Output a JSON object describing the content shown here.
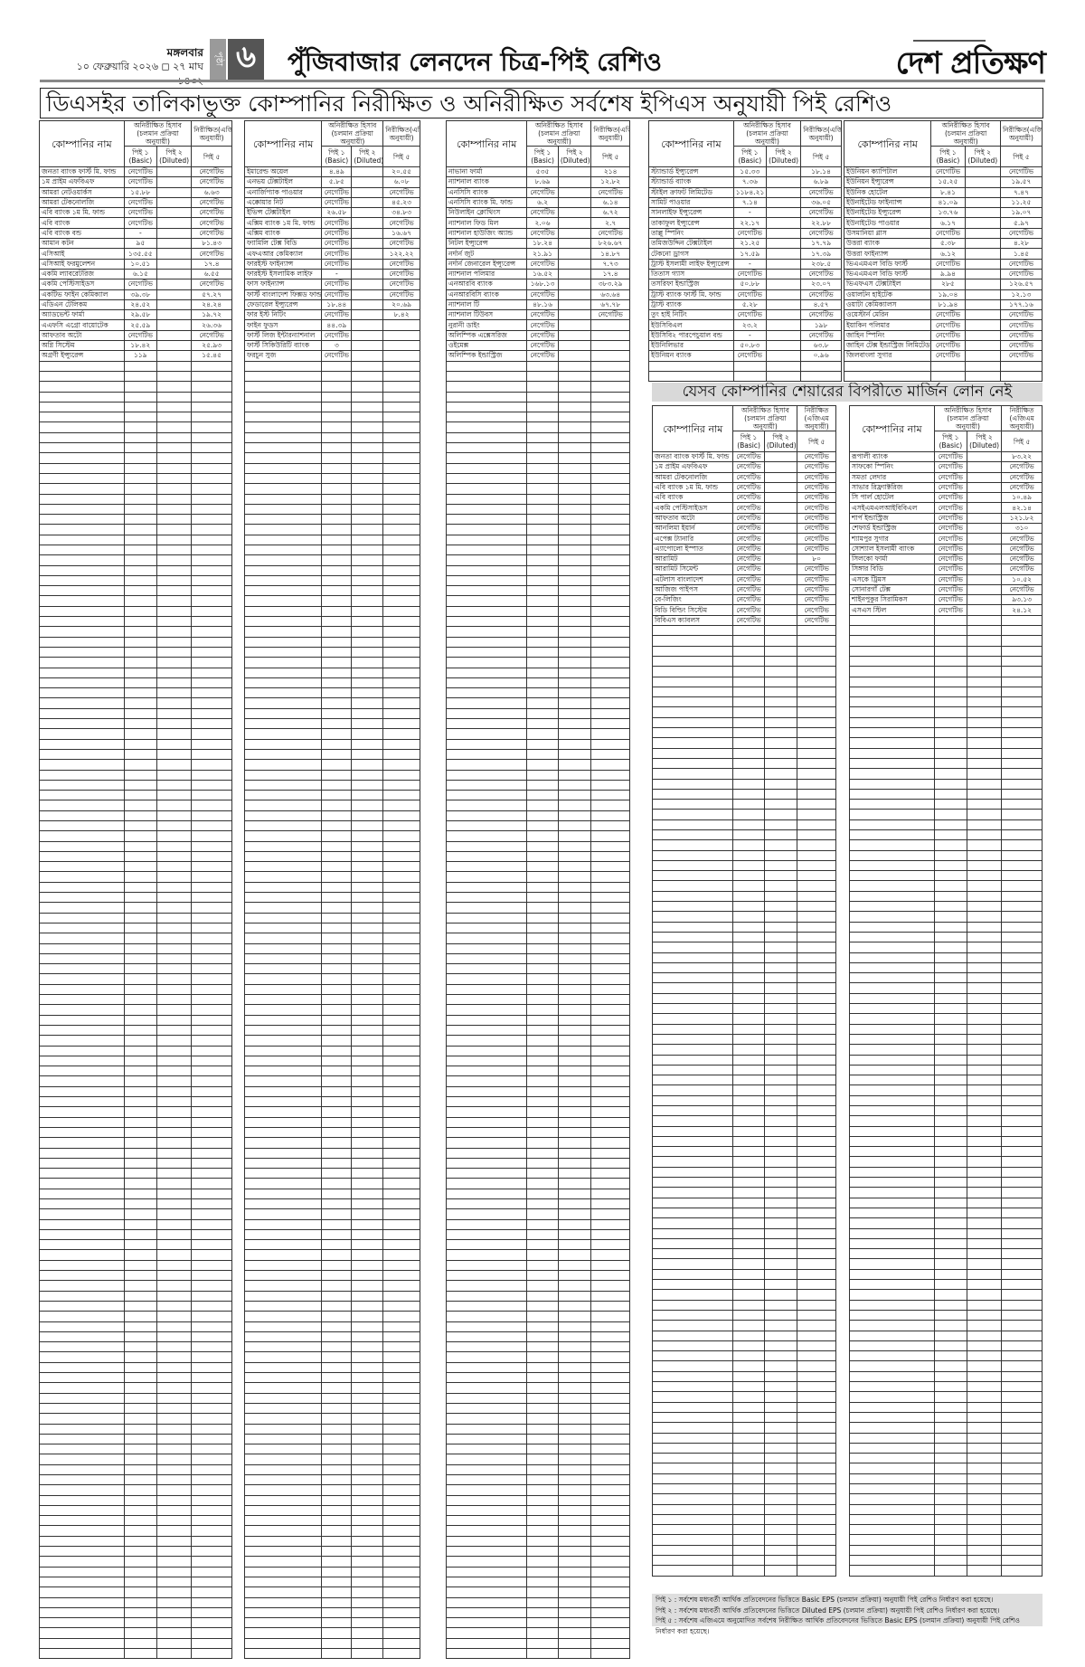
{
  "masthead": {
    "day": "মঙ্গলবার",
    "date": "১০ ফেব্রুয়ারি ২০২৬ ◻ ২৭ মাঘ ১৪৩২",
    "page_label": "পৃষ্ঠা",
    "page_number": "৬",
    "section_title": "পুঁজিবাজার লেনদেন চিত্র-পিই রেশিও",
    "logo": "দেশ প্রতিক্ষণ"
  },
  "main_title": "ডিএসইর তালিকাভুক্ত কোম্পানির নিরীক্ষিত ও অনিরীক্ষিত সর্বশেষ ইপিএস অনুযায়ী পিই রেশিও",
  "table_header": {
    "company": "কোম্পানির নাম",
    "unaudited": "অনিরীক্ষিত হিসাব (চলমান প্রক্রিয়া অনুযায়ী)",
    "audited": "নিরীক্ষিত(এজিএম অনুযায়ী)",
    "pe1": "পিই ১ (Basic)",
    "pe2": "পিই ২ (Diluted)",
    "pe5": "পিই ৫"
  },
  "pe_tables": [
    {
      "rows": [
        [
          "জনতা ব্যাংক ফার্স্ট মি. ফান্ড",
          "নেগেটিভ",
          "",
          "নেগেটিভ"
        ],
        [
          "১ম প্রাইম এফবিএফ",
          "নেগেটিভ",
          "",
          "নেগেটিভ"
        ],
        [
          "আমরা নেটওয়ার্কস",
          "১৫.৮৮",
          "",
          "৬.৬৩"
        ],
        [
          "আমরা টেকনোলজি",
          "নেগেটিভ",
          "",
          "নেগেটিভ"
        ],
        [
          "এবি ব্যাংক ১ম মি. ফান্ড",
          "নেগেটিভ",
          "",
          "নেগেটিভ"
        ],
        [
          "এবি ব্যাংক",
          "নেগেটিভ",
          "",
          "নেগেটিভ"
        ],
        [
          "এবি ব্যাংক বন্ড",
          "-",
          "",
          "নেগেটিভ"
        ],
        [
          "আমান কটন",
          "৯৫",
          "",
          "৮১.৪৩"
        ],
        [
          "এসিআই",
          "১৩৫.৫৫",
          "",
          "নেগেটিভ"
        ],
        [
          "এসিআই ফরমুলেশন",
          "১০.৫১",
          "",
          "১৭.৪"
        ],
        [
          "একমি ল্যাবরেটরিজ",
          "৬.১৫",
          "",
          "৬.৫৫"
        ],
        [
          "একমি পেস্টিসাইডস",
          "নেগেটিভ",
          "",
          "নেগেটিভ"
        ],
        [
          "একটিভ ফাইন কেমিক্যাল",
          "৩৯.৩৮",
          "",
          "৫৭.২৭"
        ],
        [
          "এডিএন টেলিকম",
          "২৪.৫২",
          "",
          "২৪.২৪"
        ],
        [
          "অ্যাডভেন্ট ফার্মা",
          "২৯.৫৮",
          "",
          "১৯.৭২"
        ],
        [
          "এএফসি এগ্রো বায়োটেক",
          "২৫.৫৯",
          "",
          "২৬.৩৬"
        ],
        [
          "আফতাব অটো",
          "নেগেটিভ",
          "",
          "নেগেটিভ"
        ],
        [
          "অগ্নি সিস্টেম",
          "১৮.৪২",
          "",
          "২৫.৯৩"
        ],
        [
          "অগ্রণী ইন্স্যুরেন্স",
          "১১৯",
          "",
          "১৫.৪৫"
        ]
      ]
    },
    {
      "rows": [
        [
          "ইমারেল্ড অয়েল",
          "৪.৪৯",
          "",
          "২০.৫৫"
        ],
        [
          "এনভয় টেক্সটাইল",
          "৫.৮৫",
          "",
          "৬.০৮"
        ],
        [
          "এনার্জিপ্যাক পাওয়ার",
          "নেগেটিভ",
          "",
          "নেগেটিভ"
        ],
        [
          "এক্কোয়ার নিট",
          "নেগেটিভ",
          "",
          "৪৫.২৩"
        ],
        [
          "ইভিন্স টেক্সটাইল",
          "২৬.৫৮",
          "",
          "৩৪.৮৩"
        ],
        [
          "এক্সিম ব্যাংক ১ম মি. ফান্ড",
          "নেগেটিভ",
          "",
          "নেগেটিভ"
        ],
        [
          "এক্সিম ব্যাংক",
          "নেগেটিভ",
          "",
          "১৬.৬৭"
        ],
        [
          "ফ্যামিলি টেক্স বিডি",
          "নেগেটিভ",
          "",
          "নেগেটিভ"
        ],
        [
          "এফএআর কেমিক্যাল",
          "নেগেটিভ",
          "",
          "১২২.২২"
        ],
        [
          "ফারইস্ট ফাইন্যান্স",
          "নেগেটিভ",
          "",
          "নেগেটিভ"
        ],
        [
          "ফারইস্ট ইসলামিক লাইফ",
          "-",
          "",
          "নেগেটিভ"
        ],
        [
          "ফাস ফাইন্যান্স",
          "নেগেটিভ",
          "",
          "নেগেটিভ"
        ],
        [
          "ফার্স্ট বাংলাদেশ ফিক্সড ফান্ড",
          "নেগেটিভ",
          "",
          "নেগেটিভ"
        ],
        [
          "ফেডারেল ইন্স্যুরেন্স",
          "১৮.৪৪",
          "",
          "২০.৬৯"
        ],
        [
          "ফার ইস্ট নিটিং",
          "নেগেটিভ",
          "",
          "৮.৪২"
        ],
        [
          "ফাইন ফুডস",
          "৪৪.৩৯",
          "",
          ""
        ],
        [
          "ফার্স্ট লিজ ইন্টারন্যাশনাল",
          "নেগেটিভ",
          "",
          ""
        ],
        [
          "ফার্স্ট সিকিউরিটি ব্যাংক",
          "৩",
          "",
          ""
        ],
        [
          "ফরচুন সুজ",
          "নেগেটিভ",
          "",
          ""
        ]
      ]
    },
    {
      "rows": [
        [
          "নাভানা ফার্মা",
          "৫৩৫",
          "",
          "২১৪"
        ],
        [
          "ন্যাশনাল ব্যাংক",
          "৮.৬৯",
          "",
          "১২.৮২"
        ],
        [
          "এনসিসি ব্যাংক",
          "নেগেটিভ",
          "",
          "নেগেটিভ"
        ],
        [
          "এনসিসি ব্যাংক মি. ফান্ড",
          "৬.২",
          "",
          "৬.১৪"
        ],
        [
          "নিউলাইন ক্লোথিংস",
          "নেগেটিভ",
          "",
          "৬.৭২"
        ],
        [
          "ন্যাশনাল ফিড মিল",
          "২.০৬",
          "",
          "২.৭"
        ],
        [
          "ন্যাশনাল হাউজিং অ্যান্ড",
          "নেগেটিভ",
          "",
          "নেগেটিভ"
        ],
        [
          "নিটল ইন্স্যুরেন্স",
          "১৮.২৪",
          "",
          "৮২৬.৬৭"
        ],
        [
          "নর্দার্ন জুট",
          "২১.৯১",
          "",
          "১৪.৮৭"
        ],
        [
          "নর্দার্ন জেনারেল ইন্স্যুরেন্স",
          "নেগেটিভ",
          "",
          "৭.৭৩"
        ],
        [
          "ন্যাশনাল পলিমার",
          "১৬.৫২",
          "",
          "১৭.৪"
        ],
        [
          "এনআরবি ব্যাংক",
          "১৬৮.১৩",
          "",
          "৩৮৩.২৯"
        ],
        [
          "এনআরবিসি ব্যাংক",
          "নেগেটিভ",
          "",
          "৬৩.৬৪"
        ],
        [
          "ন্যাশনাল টি",
          "৪৮.১৬",
          "",
          "৬৭.৭৮"
        ],
        [
          "ন্যাশনাল টিউবস",
          "নেগেটিভ",
          "",
          "নেগেটিভ"
        ],
        [
          "নুরানী ডাইং",
          "নেগেটিভ",
          "",
          ""
        ],
        [
          "অলিম্পিক এক্সেসরিজ",
          "নেগেটিভ",
          "",
          ""
        ],
        [
          "ওইমেক্স",
          "নেগেটিভ",
          "",
          ""
        ],
        [
          "অলিম্পিক ইন্ডাস্ট্রিজ",
          "নেগেটিভ",
          "",
          ""
        ]
      ]
    },
    {
      "rows": [
        [
          "স্ট্যান্ডার্ড ইন্স্যুরেন্স",
          "১৫.৩৩",
          "",
          "১৮.১৪"
        ],
        [
          "স্ট্যান্ডার্ড ব্যাংক",
          "৭.৩৬",
          "",
          "৬.৮৯"
        ],
        [
          "স্টাইল ক্রাফট লিমিটেড",
          "১১৮৪.২১",
          "",
          "নেগেটিভ"
        ],
        [
          "সামিট পাওয়ার",
          "৭.১৪",
          "",
          "৩৬.০৫"
        ],
        [
          "সানলাইফ ইন্স্যুরেন্স",
          "-",
          "",
          "নেগেটিভ"
        ],
        [
          "তাকাফুল ইন্স্যুরেন্স",
          "২২.১৭",
          "",
          "২২.৮৮"
        ],
        [
          "তাল্লু স্পিনিং",
          "নেগেটিভ",
          "",
          "নেগেটিভ"
        ],
        [
          "তমিজউদ্দিন টেক্সটাইল",
          "২১.২৫",
          "",
          "১৭.৭৯"
        ],
        [
          "টেকনো ড্রাগস",
          "১৭.৫৯",
          "",
          "১৭.৩৯"
        ],
        [
          "ট্রাস্ট ইসলামী লাইফ ইন্স্যুরেন্স",
          "-",
          "",
          "২৩৮.৫"
        ],
        [
          "তিতাস গ্যাস",
          "নেগেটিভ",
          "",
          "নেগেটিভ"
        ],
        [
          "তসরিফা ইন্ডাস্ট্রিজ",
          "৫০.৮৮",
          "",
          "২৩.০৭"
        ],
        [
          "ট্রাস্ট ব্যাংক ফার্স্ট মি. ফান্ড",
          "নেগেটিভ",
          "",
          "নেগেটিভ"
        ],
        [
          "ট্রাস্ট ব্যাংক",
          "৫.২৮",
          "",
          "৪.৫৭"
        ],
        [
          "তুং হাই নিটিং",
          "নেগেটিভ",
          "",
          "নেগেটিভ"
        ],
        [
          "ইউসিবিএল",
          "২৩.২",
          "",
          "১৯৮"
        ],
        [
          "ইউসিবি২ পারপেচুয়াল বন্ড",
          "-",
          "",
          "নেগেটিভ"
        ],
        [
          "ইউনিলিভার",
          "৫০.৮৩",
          "",
          "৬৩.৮"
        ],
        [
          "ইউনিয়ন ব্যাংক",
          "নেগেটিভ",
          "",
          "০.৯৬"
        ]
      ]
    },
    {
      "rows": [
        [
          "ইউনিয়ন ক্যাপিটাল",
          "নেগেটিভ",
          "",
          "নেগেটিভ"
        ],
        [
          "ইউনিয়ন ইন্স্যুরেন্স",
          "১৫.২৫",
          "",
          "১৯.৫৭"
        ],
        [
          "ইউনিক হোটেল",
          "৮.৪১",
          "",
          "৭.৪৭"
        ],
        [
          "ইউনাইটেড ফাইন্যান্স",
          "৪১.০৯",
          "",
          "১১.২৫"
        ],
        [
          "ইউনাইটেড ইন্স্যুরেন্স",
          "১৩.৭৬",
          "",
          "১৯.০৭"
        ],
        [
          "ইউনাইটেড পাওয়ার",
          "৬.১৭",
          "",
          "৫.৯৭"
        ],
        [
          "উসমানিয়া গ্লাস",
          "নেগেটিভ",
          "",
          "নেগেটিভ"
        ],
        [
          "উত্তরা ব্যাংক",
          "৫.৩৮",
          "",
          "৪.২৮"
        ],
        [
          "উত্তরা ফাইন্যান্স",
          "৬.১২",
          "",
          "১.৪৫"
        ],
        [
          "ভিএএমএল বিডি ফার্স্ট",
          "নেগেটিভ",
          "",
          "নেগেটিভ"
        ],
        [
          "ভিএএমএল বিডি ফার্স্ট",
          "৯.৯৪",
          "",
          "নেগেটিভ"
        ],
        [
          "ভিএফএস টেক্সটাইল",
          "২৮৫",
          "",
          "১২৬.৫৭"
        ],
        [
          "ওয়ালটন হাইটেক",
          "১৯.০৪",
          "",
          "১২.১৩"
        ],
        [
          "ওয়াটা কেমিক্যালস",
          "৮১.৯৪",
          "",
          "১৭৭.১৬"
        ],
        [
          "ওয়েস্টার্ন মেরিন",
          "নেগেটিভ",
          "",
          "নেগেটিভ"
        ],
        [
          "ইয়াকিন পলিমার",
          "নেগেটিভ",
          "",
          "নেগেটিভ"
        ],
        [
          "জাহিন স্পিনিং",
          "নেগেটিভ",
          "",
          "নেগেটিভ"
        ],
        [
          "জাহিন টেক্স ইন্ডাস্ট্রিজ লিমিটেড",
          "নেগেটিভ",
          "",
          "নেগেটিভ"
        ],
        [
          "জিলবাংলা সুগার",
          "নেগেটিভ",
          "",
          "নেগেটিভ"
        ]
      ]
    }
  ],
  "margin_section": {
    "title": "যেসব কোম্পানির শেয়ারের বিপরীতে মার্জিন লোন নেই",
    "audited_header": "নিরীক্ষিত (এজিএম অনুযায়ী)",
    "tables": [
      {
        "rows": [
          [
            "জনতা ব্যাংক ফার্স্ট মি. ফান্ড",
            "নেগেটিভ",
            "",
            "নেগেটিভ"
          ],
          [
            "১ম প্রাইম এফবিএফ",
            "নেগেটিভ",
            "",
            "নেগেটিভ"
          ],
          [
            "আমরা টেকনোলজি",
            "নেগেটিভ",
            "",
            "নেগেটিভ"
          ],
          [
            "এবি ব্যাংক ১ম মি. ফান্ড",
            "নেগেটিভ",
            "",
            "নেগেটিভ"
          ],
          [
            "এবি ব্যাংক",
            "নেগেটিভ",
            "",
            "নেগেটিভ"
          ],
          [
            "একমি পেস্টিসাইডস",
            "নেগেটিভ",
            "",
            "নেগেটিভ"
          ],
          [
            "আফতাব অটো",
            "নেগেটিভ",
            "",
            "নেগেটিভ"
          ],
          [
            "আনলিমা ইয়ার্ন",
            "নেগেটিভ",
            "",
            "নেগেটিভ"
          ],
          [
            "এপেক্স ট্যানারি",
            "নেগেটিভ",
            "",
            "নেগেটিভ"
          ],
          [
            "এ্যাপোলো ইস্পাত",
            "নেগেটিভ",
            "",
            "নেগেটিভ"
          ],
          [
            "আরামিট",
            "নেগেটিভ",
            "",
            "৮০"
          ],
          [
            "আরামিট সিমেন্ট",
            "নেগেটিভ",
            "",
            "নেগেটিভ"
          ],
          [
            "এটলাস বাংলাদেশ",
            "নেগেটিভ",
            "",
            "নেগেটিভ"
          ],
          [
            "আজিজ পাইপস",
            "নেগেটিভ",
            "",
            "নেগেটিভ"
          ],
          [
            "বে-লিজিং",
            "নেগেটিভ",
            "",
            "নেগেটিভ"
          ],
          [
            "বিডি বিল্ডিং সিস্টেম",
            "নেগেটিভ",
            "",
            "নেগেটিভ"
          ],
          [
            "বিবিএস ক্যাবলস",
            "নেগেটিভ",
            "",
            "নেগেটিভ"
          ]
        ]
      },
      {
        "rows": [
          [
            "রূপালী ব্যাংক",
            "নেগেটিভ",
            "",
            "৮৩.২২"
          ],
          [
            "সাফকো স্পিনিং",
            "নেগেটিভ",
            "",
            "নেগেটিভ"
          ],
          [
            "সমতা লেদার",
            "নেগেটিভ",
            "",
            "নেগেটিভ"
          ],
          [
            "সাভার রিফ্র্যাক্টরিজ",
            "নেগেটিভ",
            "",
            "নেগেটিভ"
          ],
          [
            "সি পার্ল হোটেল",
            "নেগেটিভ",
            "",
            "১০.৪৯"
          ],
          [
            "এসইএমএলআইবিবিএল",
            "নেগেটিভ",
            "",
            "৪২.১৪"
          ],
          [
            "শার্প ইন্ডাস্ট্রিজ",
            "নেগেটিভ",
            "",
            "১২১.৮২"
          ],
          [
            "শেফার্ড ইন্ডাস্ট্রিজ",
            "নেগেটিভ",
            "",
            "৩১০"
          ],
          [
            "শ্যামপুর সুগার",
            "নেগেটিভ",
            "",
            "নেগেটিভ"
          ],
          [
            "সোশ্যাল ইসলামী ব্যাংক",
            "নেগেটিভ",
            "",
            "নেগেটিভ"
          ],
          [
            "সিলকো ফার্মা",
            "নেগেটিভ",
            "",
            "নেগেটিভ"
          ],
          [
            "সিঙ্গার বিডি",
            "নেগেটিভ",
            "",
            "নেগেটিভ"
          ],
          [
            "এসকে ট্রিমস",
            "নেগেটিভ",
            "",
            "১০.৫২"
          ],
          [
            "সোনারগাঁ টেক্স",
            "নেগেটিভ",
            "",
            "নেগেটিভ"
          ],
          [
            "শাইনপুকুর সিরামিকস",
            "নেগেটিভ",
            "",
            "৯৩.১৩"
          ],
          [
            "এসএস স্টিল",
            "নেগেটিভ",
            "",
            "২৪.১২"
          ]
        ]
      }
    ]
  },
  "footnotes": [
    "পিই ১ : সর্বশেষ মধ্যবর্তী আর্থিক প্রতিবেদনের ভিত্তিতে Basic EPS (চলমান প্রক্রিয়া) অনুযায়ী পিই রেশিও নির্ধারণ করা হয়েছে।",
    "পিই ২ : সর্বশেষ মধ্যবর্তী আর্থিক প্রতিবেদনের ভিত্তিতে Diluted EPS (চলমান প্রক্রিয়া) অনুযায়ী পিই রেশিও নির্ধারণ করা হয়েছে।",
    "পিই ৫ : সর্বশেষ এজিএমে অনুমোদিত সর্বশেষ নিরীক্ষিত আর্থিক প্রতিবেদনের ভিত্তিতে Basic EPS (চলমান প্রক্রিয়া) অনুযায়ী পিই রেশিও নির্ধারণ করা হয়েছে।"
  ]
}
